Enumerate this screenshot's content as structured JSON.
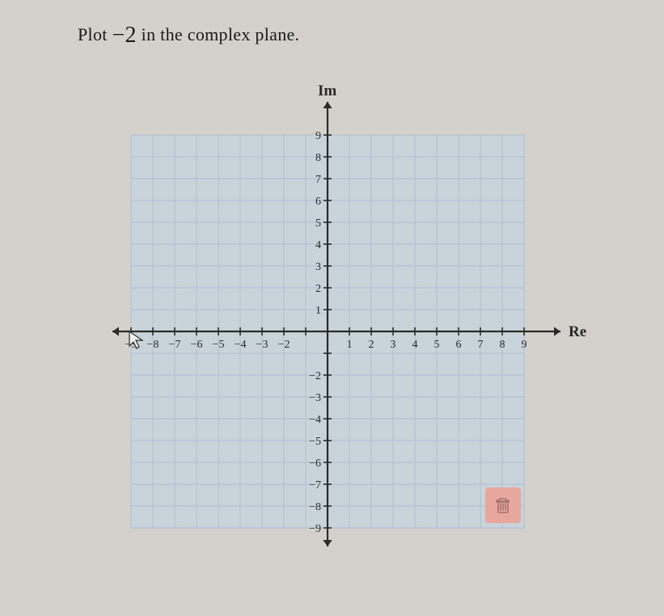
{
  "prompt": {
    "prefix": "Plot ",
    "value": "−2",
    "suffix": " in the complex plane."
  },
  "chart": {
    "type": "scatter",
    "xlabel": "Re",
    "ylabel": "Im",
    "xlim": [
      -10,
      10
    ],
    "ylim": [
      -10,
      10
    ],
    "xtick_step": 1,
    "ytick_step": 1,
    "y_tick_labels_pos": [
      1,
      2,
      3,
      4,
      5,
      6,
      7,
      8,
      9
    ],
    "y_tick_labels_neg": [
      -2,
      -3,
      -4,
      -5,
      -6,
      -7,
      -8,
      -9
    ],
    "x_tick_labels_pos": [
      1,
      2,
      3,
      4,
      5,
      6,
      7,
      8,
      9
    ],
    "x_tick_labels_neg": [
      -2,
      -3,
      -4,
      -5,
      -6,
      -7,
      -8,
      -9
    ],
    "panel_ranges": {
      "x": [
        -9,
        9
      ],
      "y": [
        -9,
        9
      ]
    },
    "grid": true,
    "grid_color": "#aebfd1",
    "grid_width": 1,
    "axis_color": "#2a2a2a",
    "axis_width": 2.2,
    "background_color": "#c9d3da",
    "page_background": "#d4d1cc",
    "label_fontsize": 17,
    "tick_fontsize": 14,
    "tick_color": "#2a2a2a",
    "axis_label_fontsize": 19,
    "cursor_position_unit": [
      -9,
      0
    ],
    "trash_button_color": "#e8a79e"
  }
}
